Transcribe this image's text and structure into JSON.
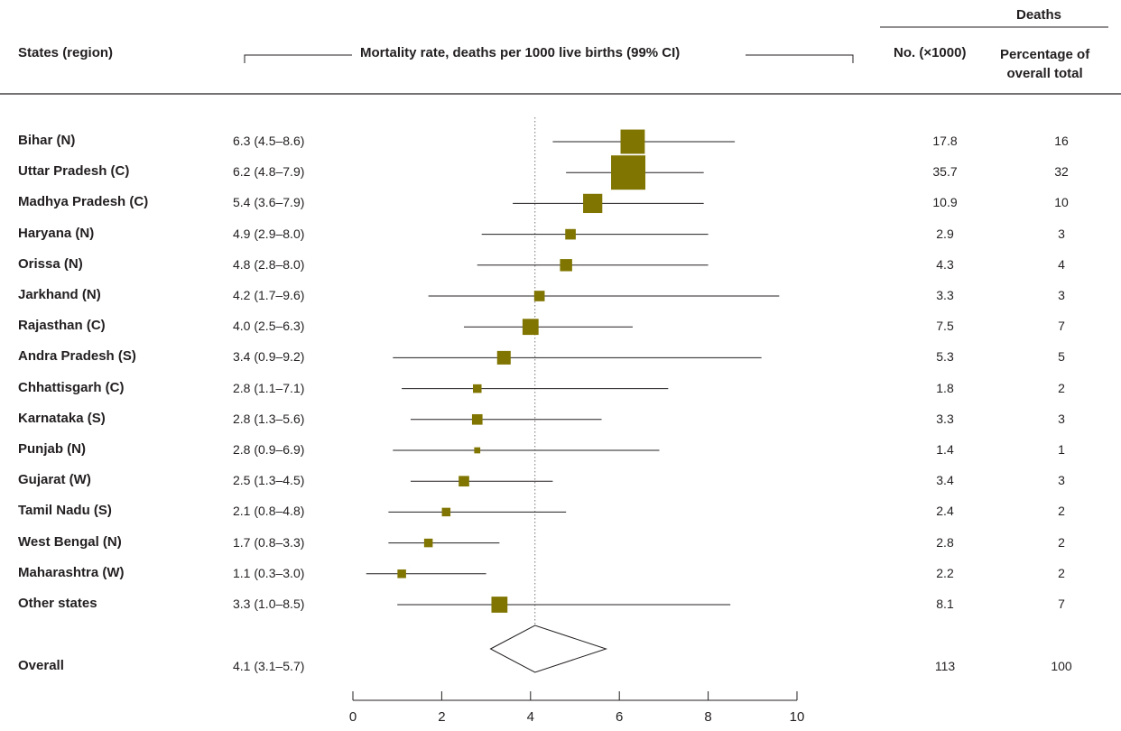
{
  "header": {
    "states_label": "States (region)",
    "rate_label": "Mortality rate, deaths per 1000 live births (99% CI)",
    "deaths_label": "Deaths",
    "number_label": "No. (×1000)",
    "percentage_label_line1": "Percentage of",
    "percentage_label_line2": "overall total"
  },
  "chart_data": {
    "type": "forest",
    "xlim": [
      0,
      10
    ],
    "x_ticks": [
      0,
      2,
      4,
      6,
      8,
      10
    ],
    "reference_line": 4.1,
    "rows": [
      {
        "state": "Bihar (N)",
        "rate_text": "6.3 (4.5–8.6)",
        "rate": 6.3,
        "lo": 4.5,
        "hi": 8.6,
        "deaths": "17.8",
        "pct": "16"
      },
      {
        "state": "Uttar Pradesh (C)",
        "rate_text": "6.2 (4.8–7.9)",
        "rate": 6.2,
        "lo": 4.8,
        "hi": 7.9,
        "deaths": "35.7",
        "pct": "32"
      },
      {
        "state": "Madhya Pradesh (C)",
        "rate_text": "5.4 (3.6–7.9)",
        "rate": 5.4,
        "lo": 3.6,
        "hi": 7.9,
        "deaths": "10.9",
        "pct": "10"
      },
      {
        "state": "Haryana (N)",
        "rate_text": "4.9 (2.9–8.0)",
        "rate": 4.9,
        "lo": 2.9,
        "hi": 8.0,
        "deaths": "2.9",
        "pct": "3"
      },
      {
        "state": "Orissa (N)",
        "rate_text": "4.8 (2.8–8.0)",
        "rate": 4.8,
        "lo": 2.8,
        "hi": 8.0,
        "deaths": "4.3",
        "pct": "4"
      },
      {
        "state": "Jarkhand (N)",
        "rate_text": "4.2 (1.7–9.6)",
        "rate": 4.2,
        "lo": 1.7,
        "hi": 9.6,
        "deaths": "3.3",
        "pct": "3"
      },
      {
        "state": "Rajasthan (C)",
        "rate_text": "4.0 (2.5–6.3)",
        "rate": 4.0,
        "lo": 2.5,
        "hi": 6.3,
        "deaths": "7.5",
        "pct": "7"
      },
      {
        "state": "Andra Pradesh (S)",
        "rate_text": "3.4 (0.9–9.2)",
        "rate": 3.4,
        "lo": 0.9,
        "hi": 9.2,
        "deaths": "5.3",
        "pct": "5"
      },
      {
        "state": "Chhattisgarh (C)",
        "rate_text": "2.8 (1.1–7.1)",
        "rate": 2.8,
        "lo": 1.1,
        "hi": 7.1,
        "deaths": "1.8",
        "pct": "2"
      },
      {
        "state": "Karnataka (S)",
        "rate_text": "2.8 (1.3–5.6)",
        "rate": 2.8,
        "lo": 1.3,
        "hi": 5.6,
        "deaths": "3.3",
        "pct": "3"
      },
      {
        "state": "Punjab (N)",
        "rate_text": "2.8 (0.9–6.9)",
        "rate": 2.8,
        "lo": 0.9,
        "hi": 6.9,
        "deaths": "1.4",
        "pct": "1"
      },
      {
        "state": "Gujarat (W)",
        "rate_text": "2.5 (1.3–4.5)",
        "rate": 2.5,
        "lo": 1.3,
        "hi": 4.5,
        "deaths": "3.4",
        "pct": "3"
      },
      {
        "state": "Tamil Nadu (S)",
        "rate_text": "2.1 (0.8–4.8)",
        "rate": 2.1,
        "lo": 0.8,
        "hi": 4.8,
        "deaths": "2.4",
        "pct": "2"
      },
      {
        "state": "West Bengal (N)",
        "rate_text": "1.7 (0.8–3.3)",
        "rate": 1.7,
        "lo": 0.8,
        "hi": 3.3,
        "deaths": "2.8",
        "pct": "2"
      },
      {
        "state": "Maharashtra (W)",
        "rate_text": "1.1 (0.3–3.0)",
        "rate": 1.1,
        "lo": 0.3,
        "hi": 3.0,
        "deaths": "2.2",
        "pct": "2"
      },
      {
        "state": "Other states",
        "rate_text": "3.3 (1.0–8.5)",
        "rate": 3.3,
        "lo": 1.0,
        "hi": 8.5,
        "deaths": "8.1",
        "pct": "7"
      }
    ],
    "overall": {
      "state": "Overall",
      "rate_text": "4.1 (3.1–5.7)",
      "rate": 4.1,
      "lo": 3.1,
      "hi": 5.7,
      "deaths": "113",
      "pct": "100"
    }
  },
  "colors": {
    "marker": "#7f7500",
    "text": "#231f20",
    "line": "#231f20",
    "reference": "#777777"
  }
}
